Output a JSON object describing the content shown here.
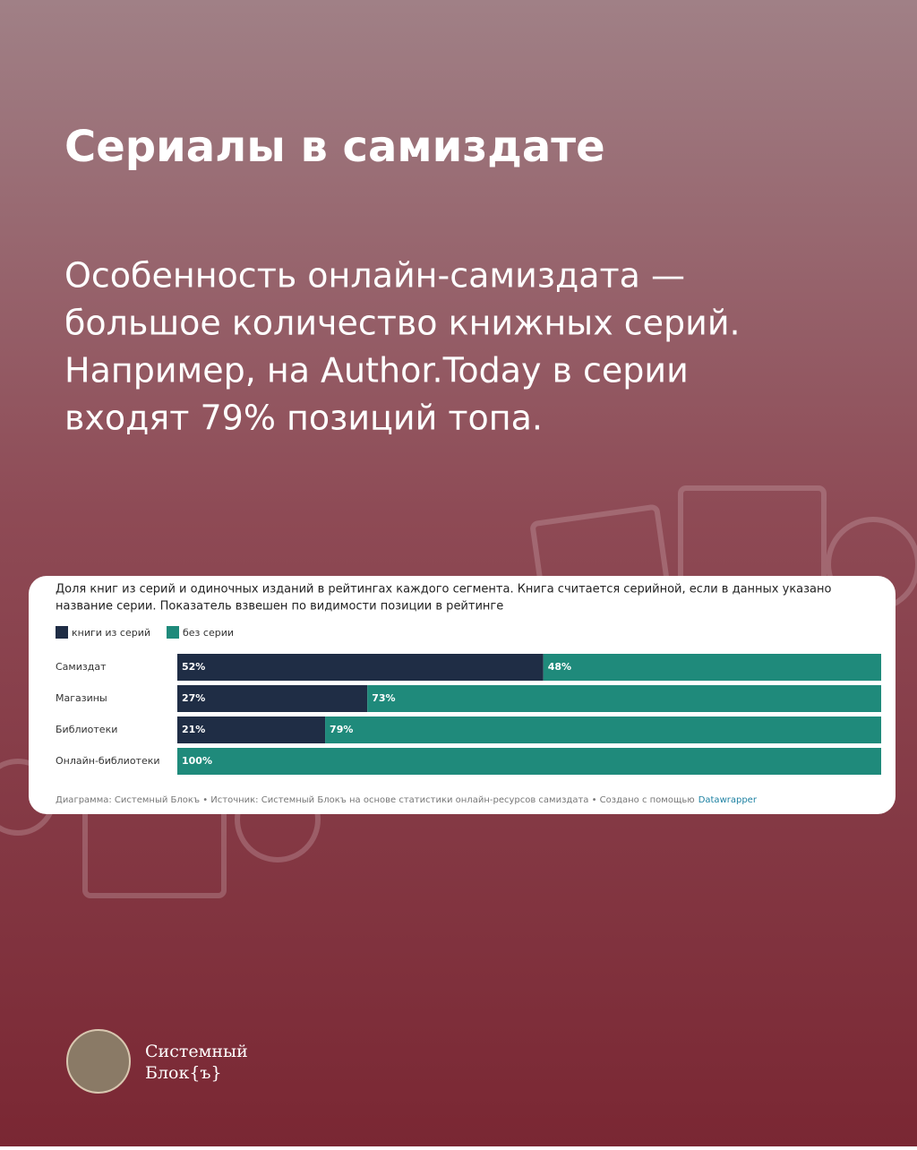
{
  "header": {
    "title": "Сериалы в самиздате",
    "text_lines": [
      "Особенность онлайн-самиздата —",
      "большое количество книжных серий.",
      "Например, на Author.Today в серии",
      "входят 79% позиций топа."
    ]
  },
  "chart_data": {
    "type": "stacked-bar-horizontal",
    "title_lines": [
      "Доля книг из серий и одиночных изданий в рейтингах каждого сегмента. Книга считается серийной, если в данных указано",
      "название серии. Показатель взвешен по видимости позиции в рейтинге"
    ],
    "categories": [
      "Самиздат",
      "Магазины",
      "Библиотеки",
      "Онлайн-библиотеки"
    ],
    "series": [
      {
        "name": "книги из серий",
        "color": "#1f2d45",
        "values": [
          52,
          27,
          21,
          0
        ],
        "value_labels": [
          "52%",
          "27%",
          "21%",
          null
        ]
      },
      {
        "name": "без серии",
        "color": "#1f8a7b",
        "values": [
          48,
          73,
          79,
          100
        ],
        "value_labels": [
          "48%",
          "73%",
          "79%",
          "100%"
        ]
      }
    ],
    "note": "Диаграмма: Системный Блокъ • Источник: Системный Блокъ на основе статистики онлайн-ресурсов самиздата • Создано с помощью",
    "note_link": "Datawrapper"
  },
  "brand": {
    "line1": "Системный",
    "line2": "Блок{ъ}"
  }
}
